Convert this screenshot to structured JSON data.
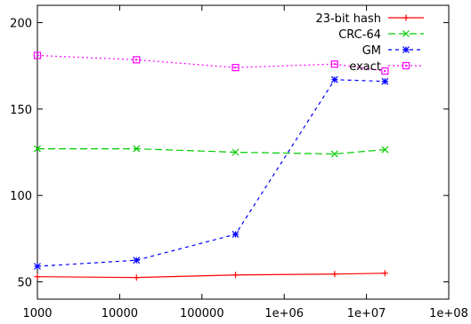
{
  "chart_data": {
    "type": "line",
    "title": "",
    "xlabel": "",
    "ylabel": "",
    "xscale": "log",
    "xlim": [
      1000,
      100000000
    ],
    "ylim": [
      40,
      210
    ],
    "grid": false,
    "legend_position": "top-right",
    "xticks": [
      {
        "value": 1000,
        "label": "1000"
      },
      {
        "value": 10000,
        "label": "10000"
      },
      {
        "value": 100000,
        "label": "100000"
      },
      {
        "value": 1000000,
        "label": "1e+06"
      },
      {
        "value": 10000000,
        "label": "1e+07"
      },
      {
        "value": 100000000,
        "label": "1e+08"
      }
    ],
    "yticks": [
      {
        "value": 50,
        "label": "50"
      },
      {
        "value": 100,
        "label": "100"
      },
      {
        "value": 150,
        "label": "150"
      },
      {
        "value": 200,
        "label": "200"
      }
    ],
    "series": [
      {
        "name": "23-bit hash",
        "color": "#ff0000",
        "dash": "solid",
        "marker": "plus",
        "points": [
          [
            1000,
            53
          ],
          [
            16000,
            52.5
          ],
          [
            256000,
            54
          ],
          [
            4100000,
            54.5
          ],
          [
            16800000,
            55
          ]
        ]
      },
      {
        "name": "CRC-64",
        "color": "#00cc00",
        "dash": "long-dash",
        "marker": "cross",
        "points": [
          [
            1000,
            127
          ],
          [
            16000,
            127
          ],
          [
            256000,
            125
          ],
          [
            4100000,
            124
          ],
          [
            16800000,
            126.5
          ]
        ]
      },
      {
        "name": "GM",
        "color": "#0000ff",
        "dash": "short-dash",
        "marker": "star",
        "points": [
          [
            1000,
            59
          ],
          [
            16000,
            62.5
          ],
          [
            256000,
            77.5
          ],
          [
            4100000,
            167
          ],
          [
            16800000,
            166
          ]
        ]
      },
      {
        "name": "exact",
        "color": "#ff00ff",
        "dash": "dotted",
        "marker": "square",
        "points": [
          [
            1000,
            181
          ],
          [
            16000,
            178.5
          ],
          [
            256000,
            174
          ],
          [
            4100000,
            176
          ],
          [
            16800000,
            172
          ]
        ]
      }
    ]
  }
}
